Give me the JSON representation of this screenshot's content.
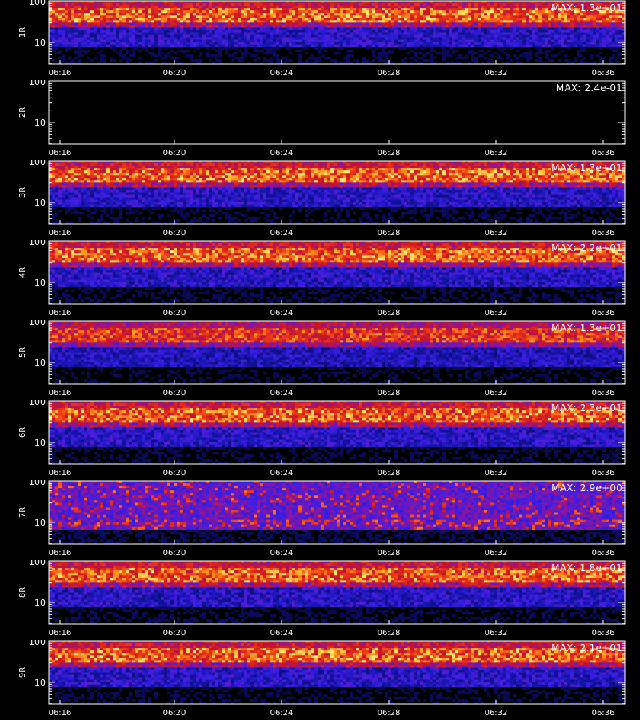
{
  "chart_data": [
    {
      "type": "heatmap",
      "ylabel": "1R",
      "max_label": "MAX: 1.3e+01",
      "signal": 1.0,
      "band": "upper",
      "x_ticks": [
        "06:16",
        "06:20",
        "06:24",
        "06:28",
        "06:32",
        "06:36"
      ],
      "y_ticks": [
        "100",
        "10"
      ]
    },
    {
      "type": "heatmap",
      "ylabel": "2R",
      "max_label": "MAX: 2.4e-01",
      "signal": 0.0,
      "band": "none",
      "x_ticks": [
        "06:16",
        "06:20",
        "06:24",
        "06:28",
        "06:32",
        "06:36"
      ],
      "y_ticks": [
        "100",
        "10"
      ]
    },
    {
      "type": "heatmap",
      "ylabel": "3R",
      "max_label": "MAX: 1.3e+01",
      "signal": 1.0,
      "band": "upper",
      "x_ticks": [
        "06:16",
        "06:20",
        "06:24",
        "06:28",
        "06:32",
        "06:36"
      ],
      "y_ticks": [
        "100",
        "10"
      ]
    },
    {
      "type": "heatmap",
      "ylabel": "4R",
      "max_label": "MAX: 2.2e+01",
      "signal": 1.0,
      "band": "upper",
      "x_ticks": [
        "06:16",
        "06:20",
        "06:24",
        "06:28",
        "06:32",
        "06:36"
      ],
      "y_ticks": [
        "100",
        "10"
      ]
    },
    {
      "type": "heatmap",
      "ylabel": "5R",
      "max_label": "MAX: 1.3e+01",
      "signal": 0.9,
      "band": "upper",
      "x_ticks": [
        "06:16",
        "06:20",
        "06:24",
        "06:28",
        "06:32",
        "06:36"
      ],
      "y_ticks": [
        "100",
        "10"
      ]
    },
    {
      "type": "heatmap",
      "ylabel": "6R",
      "max_label": "MAX: 2.3e+01",
      "signal": 1.0,
      "band": "upper",
      "x_ticks": [
        "06:16",
        "06:20",
        "06:24",
        "06:28",
        "06:32",
        "06:36"
      ],
      "y_ticks": [
        "100",
        "10"
      ]
    },
    {
      "type": "heatmap",
      "ylabel": "7R",
      "max_label": "MAX: 2.9e+00",
      "signal": 0.8,
      "band": "broad",
      "x_ticks": [
        "06:16",
        "06:20",
        "06:24",
        "06:28",
        "06:32",
        "06:36"
      ],
      "y_ticks": [
        "100",
        "10"
      ]
    },
    {
      "type": "heatmap",
      "ylabel": "8R",
      "max_label": "MAX: 1.8e+01",
      "signal": 1.0,
      "band": "upper",
      "x_ticks": [
        "06:16",
        "06:20",
        "06:24",
        "06:28",
        "06:32",
        "06:36"
      ],
      "y_ticks": [
        "100",
        "10"
      ]
    },
    {
      "type": "heatmap",
      "ylabel": "9R",
      "max_label": "MAX: 2.1e+01",
      "signal": 1.0,
      "band": "upper",
      "x_ticks": [
        "06:16",
        "06:20",
        "06:24",
        "06:28",
        "06:32",
        "06:36"
      ],
      "y_ticks": [
        "100",
        "10"
      ]
    }
  ],
  "colors": {
    "background": "#000000",
    "axis": "#ffffff"
  }
}
